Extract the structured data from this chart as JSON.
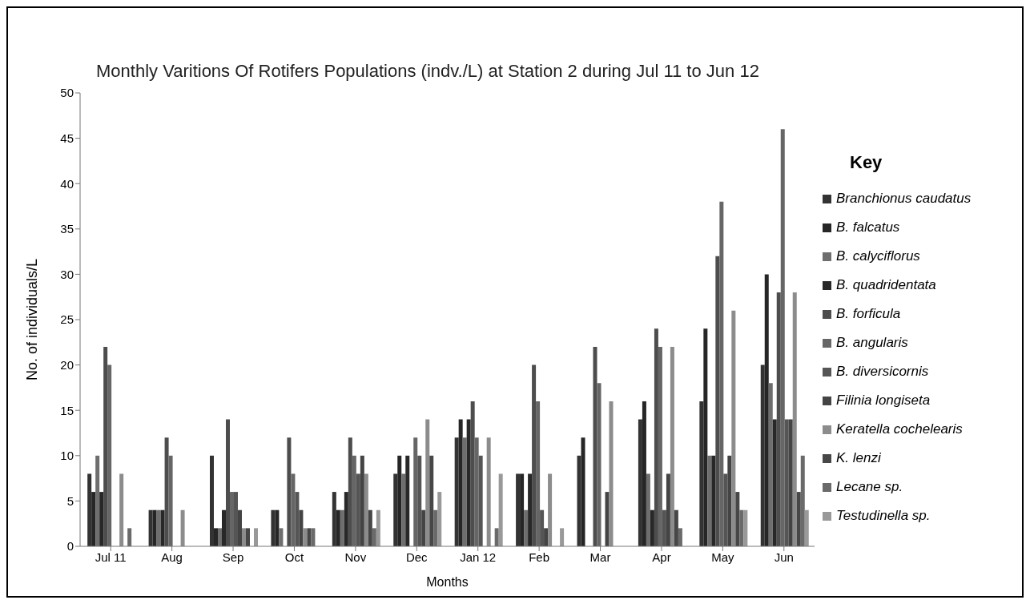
{
  "chart_data": {
    "type": "bar",
    "title": "Monthly Varitions Of Rotifers Populations (indv./L) at Station 2 during Jul 11 to Jun 12",
    "xlabel": "Months",
    "ylabel": "No. of individuals/L",
    "legend_title": "Key",
    "categories": [
      "Jul 11",
      "Aug",
      "Sep",
      "Oct",
      "Nov",
      "Dec",
      "Jan 12",
      "Feb",
      "Mar",
      "Apr",
      "May",
      "Jun"
    ],
    "series": [
      {
        "name": "Branchionus caudatus",
        "color": "#333333",
        "values": [
          8,
          4,
          10,
          4,
          6,
          8,
          12,
          8,
          10,
          14,
          16,
          20
        ]
      },
      {
        "name": "B. falcatus",
        "color": "#262626",
        "values": [
          6,
          4,
          2,
          4,
          4,
          10,
          14,
          8,
          12,
          16,
          24,
          30
        ]
      },
      {
        "name": "B. calyciflorus",
        "color": "#6e6e6e",
        "values": [
          10,
          4,
          2,
          2,
          4,
          8,
          12,
          4,
          0,
          8,
          10,
          18
        ]
      },
      {
        "name": "B. quadridentata",
        "color": "#282828",
        "values": [
          6,
          4,
          4,
          0,
          6,
          10,
          14,
          8,
          0,
          4,
          10,
          14
        ]
      },
      {
        "name": "B. forficula",
        "color": "#4d4d4d",
        "values": [
          22,
          12,
          14,
          12,
          12,
          0,
          16,
          20,
          22,
          24,
          32,
          28
        ]
      },
      {
        "name": "B. angularis",
        "color": "#666666",
        "values": [
          20,
          10,
          6,
          8,
          10,
          12,
          12,
          16,
          18,
          22,
          38,
          46
        ]
      },
      {
        "name": "B. diversicornis",
        "color": "#555555",
        "values": [
          0,
          0,
          6,
          6,
          8,
          10,
          10,
          4,
          0,
          4,
          8,
          14
        ]
      },
      {
        "name": "Filinia longiseta",
        "color": "#444444",
        "values": [
          0,
          0,
          4,
          4,
          10,
          4,
          0,
          2,
          6,
          8,
          10,
          14
        ]
      },
      {
        "name": "Keratella cochelearis",
        "color": "#8c8c8c",
        "values": [
          8,
          4,
          2,
          2,
          8,
          14,
          12,
          8,
          16,
          22,
          26,
          28
        ]
      },
      {
        "name": "K. lenzi",
        "color": "#474747",
        "values": [
          0,
          0,
          2,
          2,
          4,
          10,
          0,
          0,
          0,
          4,
          6,
          6
        ]
      },
      {
        "name": "Lecane sp.",
        "color": "#6a6a6a",
        "values": [
          2,
          0,
          0,
          2,
          2,
          4,
          2,
          0,
          0,
          2,
          4,
          10
        ]
      },
      {
        "name": "Testudinella sp.",
        "color": "#999999",
        "values": [
          0,
          0,
          2,
          0,
          4,
          6,
          8,
          2,
          0,
          0,
          4,
          4
        ]
      }
    ],
    "ylim": [
      0,
      50
    ],
    "yticks": [
      0,
      5,
      10,
      15,
      20,
      25,
      30,
      35,
      40,
      45,
      50
    ],
    "grid": false,
    "legend": "right"
  }
}
